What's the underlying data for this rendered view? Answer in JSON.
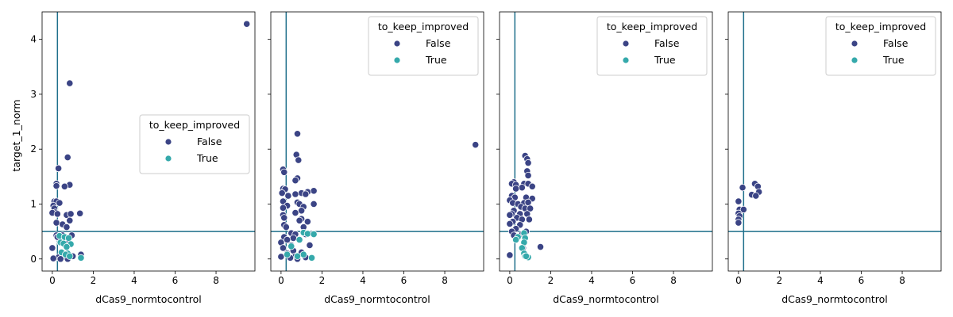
{
  "figure": {
    "xlabel": "dCas9_normtocontrol",
    "ylabel": "target_1_norm",
    "legend_title": "to_keep_improved",
    "legend_labels": [
      "False",
      "True"
    ],
    "colors": {
      "False": "#3b4485",
      "True": "#35a9ab",
      "refline": "#1f6f8b"
    }
  },
  "chart_data": [
    {
      "type": "scatter",
      "panel": 1,
      "xlabel": "dCas9_normtocontrol",
      "ylabel": "target_1_norm",
      "xlim": [
        -0.5,
        9.9
      ],
      "ylim": [
        -0.22,
        4.5
      ],
      "xticks": [
        0,
        2,
        4,
        6,
        8
      ],
      "yticks": [
        0,
        1,
        2,
        3,
        4
      ],
      "hline": 0.5,
      "vline": 0.25,
      "legend": {
        "title": "to_keep_improved",
        "entries": [
          "False",
          "True"
        ],
        "position": "center-right"
      },
      "series": [
        {
          "name": "False",
          "points": [
            [
              9.5,
              4.28
            ],
            [
              0.85,
              3.2
            ],
            [
              0.75,
              1.85
            ],
            [
              0.3,
              1.65
            ],
            [
              0.2,
              1.37
            ],
            [
              0.2,
              1.33
            ],
            [
              0.85,
              1.35
            ],
            [
              0.6,
              1.32
            ],
            [
              0.1,
              1.05
            ],
            [
              0.2,
              1.05
            ],
            [
              0.35,
              1.02
            ],
            [
              0.05,
              0.97
            ],
            [
              0.1,
              0.92
            ],
            [
              0.15,
              0.85
            ],
            [
              0.0,
              0.84
            ],
            [
              0.25,
              0.82
            ],
            [
              0.7,
              0.8
            ],
            [
              0.9,
              0.82
            ],
            [
              1.35,
              0.83
            ],
            [
              0.85,
              0.7
            ],
            [
              0.2,
              0.66
            ],
            [
              0.5,
              0.63
            ],
            [
              0.7,
              0.58
            ],
            [
              0.2,
              0.43
            ],
            [
              0.25,
              0.4
            ],
            [
              0.5,
              0.43
            ],
            [
              0.95,
              0.43
            ],
            [
              0.7,
              0.35
            ],
            [
              0.5,
              0.33
            ],
            [
              0.0,
              0.2
            ],
            [
              1.4,
              0.08
            ],
            [
              1.0,
              0.05
            ],
            [
              0.6,
              0.05
            ],
            [
              0.3,
              0.03
            ],
            [
              0.05,
              0.01
            ],
            [
              0.75,
              0.0
            ],
            [
              0.4,
              0.0
            ]
          ]
        },
        {
          "name": "True",
          "points": [
            [
              0.35,
              0.42
            ],
            [
              0.6,
              0.4
            ],
            [
              0.8,
              0.38
            ],
            [
              0.4,
              0.3
            ],
            [
              0.55,
              0.28
            ],
            [
              0.9,
              0.27
            ],
            [
              0.7,
              0.22
            ],
            [
              0.45,
              0.12
            ],
            [
              0.75,
              0.1
            ],
            [
              0.65,
              0.08
            ],
            [
              1.4,
              0.02
            ],
            [
              0.85,
              0.05
            ]
          ]
        }
      ]
    },
    {
      "type": "scatter",
      "panel": 2,
      "xlabel": "dCas9_normtocontrol",
      "ylabel": "",
      "xlim": [
        -0.5,
        9.9
      ],
      "ylim": [
        -0.22,
        4.5
      ],
      "xticks": [
        0,
        2,
        4,
        6,
        8
      ],
      "yticks": [
        0,
        1,
        2,
        3,
        4
      ],
      "hline": 0.5,
      "vline": 0.25,
      "legend": {
        "title": "to_keep_improved",
        "entries": [
          "False",
          "True"
        ],
        "position": "upper-right"
      },
      "series": [
        {
          "name": "False",
          "points": [
            [
              9.5,
              2.08
            ],
            [
              0.8,
              2.28
            ],
            [
              0.75,
              1.9
            ],
            [
              0.85,
              1.8
            ],
            [
              0.1,
              1.63
            ],
            [
              0.15,
              1.58
            ],
            [
              0.8,
              1.47
            ],
            [
              0.7,
              1.43
            ],
            [
              0.1,
              1.28
            ],
            [
              0.2,
              1.27
            ],
            [
              1.6,
              1.24
            ],
            [
              1.3,
              1.22
            ],
            [
              1.0,
              1.2
            ],
            [
              0.7,
              1.18
            ],
            [
              1.2,
              1.18
            ],
            [
              0.05,
              1.2
            ],
            [
              0.35,
              1.15
            ],
            [
              0.1,
              1.05
            ],
            [
              0.8,
              1.03
            ],
            [
              0.9,
              1.0
            ],
            [
              1.6,
              1.0
            ],
            [
              0.3,
              0.97
            ],
            [
              1.1,
              0.95
            ],
            [
              0.1,
              0.93
            ],
            [
              1.0,
              0.88
            ],
            [
              0.7,
              0.84
            ],
            [
              0.1,
              0.8
            ],
            [
              0.15,
              0.75
            ],
            [
              1.0,
              0.73
            ],
            [
              0.9,
              0.7
            ],
            [
              1.3,
              0.68
            ],
            [
              0.15,
              0.62
            ],
            [
              1.1,
              0.58
            ],
            [
              0.25,
              0.58
            ],
            [
              0.5,
              0.47
            ],
            [
              0.7,
              0.45
            ],
            [
              1.2,
              0.45
            ],
            [
              0.15,
              0.4
            ],
            [
              0.6,
              0.38
            ],
            [
              0.3,
              0.35
            ],
            [
              0.0,
              0.3
            ],
            [
              0.5,
              0.25
            ],
            [
              1.4,
              0.25
            ],
            [
              0.1,
              0.2
            ],
            [
              0.6,
              0.15
            ],
            [
              1.0,
              0.12
            ],
            [
              0.3,
              0.1
            ],
            [
              0.7,
              0.05
            ],
            [
              0.0,
              0.04
            ],
            [
              1.2,
              0.03
            ],
            [
              0.45,
              0.02
            ],
            [
              0.8,
              0.0
            ]
          ]
        },
        {
          "name": "True",
          "points": [
            [
              1.1,
              0.48
            ],
            [
              1.3,
              0.46
            ],
            [
              1.6,
              0.45
            ],
            [
              0.9,
              0.35
            ],
            [
              0.5,
              0.23
            ],
            [
              1.1,
              0.08
            ],
            [
              0.8,
              0.05
            ],
            [
              1.5,
              0.02
            ],
            [
              0.3,
              0.08
            ]
          ]
        }
      ]
    },
    {
      "type": "scatter",
      "panel": 3,
      "xlabel": "dCas9_normtocontrol",
      "ylabel": "",
      "xlim": [
        -0.5,
        9.9
      ],
      "ylim": [
        -0.22,
        4.5
      ],
      "xticks": [
        0,
        2,
        4,
        6,
        8
      ],
      "yticks": [
        0,
        1,
        2,
        3,
        4
      ],
      "hline": 0.5,
      "vline": 0.25,
      "legend": {
        "title": "to_keep_improved",
        "entries": [
          "False",
          "True"
        ],
        "position": "upper-right"
      },
      "series": [
        {
          "name": "False",
          "points": [
            [
              0.75,
              1.88
            ],
            [
              0.85,
              1.82
            ],
            [
              0.9,
              1.75
            ],
            [
              0.85,
              1.6
            ],
            [
              0.9,
              1.52
            ],
            [
              0.2,
              1.4
            ],
            [
              0.1,
              1.37
            ],
            [
              0.3,
              1.35
            ],
            [
              0.7,
              1.37
            ],
            [
              0.9,
              1.37
            ],
            [
              1.1,
              1.32
            ],
            [
              0.6,
              1.3
            ],
            [
              0.3,
              1.28
            ],
            [
              0.1,
              1.15
            ],
            [
              0.25,
              1.12
            ],
            [
              0.8,
              1.12
            ],
            [
              1.1,
              1.1
            ],
            [
              0.0,
              1.07
            ],
            [
              0.15,
              1.02
            ],
            [
              0.4,
              1.0
            ],
            [
              0.7,
              1.02
            ],
            [
              0.9,
              1.03
            ],
            [
              0.55,
              0.95
            ],
            [
              0.75,
              0.92
            ],
            [
              1.0,
              0.92
            ],
            [
              0.2,
              0.88
            ],
            [
              0.1,
              0.82
            ],
            [
              0.5,
              0.82
            ],
            [
              0.85,
              0.82
            ],
            [
              0.0,
              0.8
            ],
            [
              0.35,
              0.75
            ],
            [
              0.6,
              0.72
            ],
            [
              0.95,
              0.72
            ],
            [
              0.15,
              0.68
            ],
            [
              0.0,
              0.64
            ],
            [
              0.5,
              0.62
            ],
            [
              0.3,
              0.55
            ],
            [
              0.8,
              0.5
            ],
            [
              0.1,
              0.5
            ],
            [
              0.6,
              0.45
            ],
            [
              0.2,
              0.43
            ],
            [
              0.65,
              0.2
            ],
            [
              1.5,
              0.22
            ],
            [
              0.0,
              0.07
            ]
          ]
        },
        {
          "name": "True",
          "points": [
            [
              0.7,
              0.47
            ],
            [
              0.4,
              0.4
            ],
            [
              0.75,
              0.38
            ],
            [
              0.3,
              0.35
            ],
            [
              0.7,
              0.3
            ],
            [
              0.6,
              0.2
            ],
            [
              0.7,
              0.1
            ],
            [
              0.75,
              0.05
            ],
            [
              0.9,
              0.03
            ],
            [
              0.8,
              0.05
            ]
          ]
        }
      ]
    },
    {
      "type": "scatter",
      "panel": 4,
      "xlabel": "dCas9_normtocontrol",
      "ylabel": "",
      "xlim": [
        -0.5,
        9.9
      ],
      "ylim": [
        -0.22,
        4.5
      ],
      "xticks": [
        0,
        2,
        4,
        6,
        8
      ],
      "yticks": [
        0,
        1,
        2,
        3,
        4
      ],
      "hline": 0.5,
      "vline": 0.25,
      "legend": {
        "title": "to_keep_improved",
        "entries": [
          "False",
          "True"
        ],
        "position": "upper-right"
      },
      "series": [
        {
          "name": "False",
          "points": [
            [
              0.8,
              1.37
            ],
            [
              0.2,
              1.3
            ],
            [
              0.95,
              1.32
            ],
            [
              1.0,
              1.22
            ],
            [
              0.65,
              1.17
            ],
            [
              0.85,
              1.15
            ],
            [
              0.0,
              1.05
            ],
            [
              0.05,
              0.9
            ],
            [
              0.25,
              0.9
            ],
            [
              0.0,
              0.83
            ],
            [
              0.05,
              0.78
            ],
            [
              0.0,
              0.72
            ],
            [
              0.0,
              0.66
            ]
          ]
        },
        {
          "name": "True",
          "points": []
        }
      ]
    }
  ]
}
